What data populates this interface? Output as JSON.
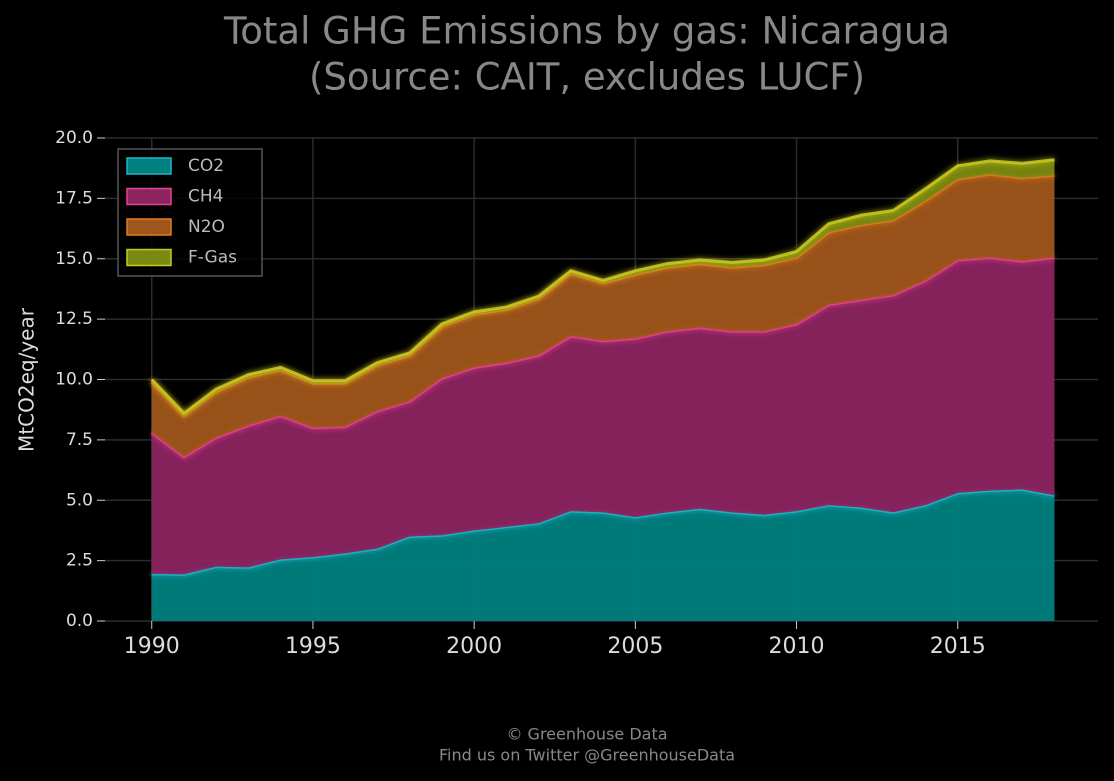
{
  "chart_data": {
    "type": "stacked-area",
    "title": "Total GHG Emissions by gas: Nicaragua",
    "subtitle": "(Source: CAIT, excludes LUCF)",
    "ylabel": "MtCO2eq/year",
    "footer": [
      "© Greenhouse Data",
      "Find us on Twitter @GreenhouseData"
    ],
    "x": [
      1990,
      1991,
      1992,
      1993,
      1994,
      1995,
      1996,
      1997,
      1998,
      1999,
      2000,
      2001,
      2002,
      2003,
      2004,
      2005,
      2006,
      2007,
      2008,
      2009,
      2010,
      2011,
      2012,
      2013,
      2014,
      2015,
      2016,
      2017,
      2018
    ],
    "series": [
      {
        "name": "CO2",
        "color": "#1fb5c4",
        "fill": "#008080",
        "values": [
          1.95,
          1.93,
          2.25,
          2.22,
          2.55,
          2.65,
          2.8,
          3.0,
          3.5,
          3.55,
          3.75,
          3.9,
          4.05,
          4.55,
          4.5,
          4.3,
          4.5,
          4.65,
          4.5,
          4.4,
          4.55,
          4.8,
          4.7,
          4.5,
          4.8,
          5.3,
          5.4,
          5.45,
          5.2
        ]
      },
      {
        "name": "CH4",
        "color": "#e8408f",
        "fill": "#8c2460",
        "values": [
          5.85,
          4.87,
          5.35,
          5.88,
          5.95,
          5.35,
          5.25,
          5.7,
          5.6,
          6.5,
          6.75,
          6.8,
          6.95,
          7.25,
          7.1,
          7.4,
          7.5,
          7.5,
          7.5,
          7.6,
          7.75,
          8.3,
          8.6,
          9.0,
          9.3,
          9.65,
          9.65,
          9.45,
          9.85
        ]
      },
      {
        "name": "N2O",
        "color": "#e07a20",
        "fill": "#a0561a",
        "values": [
          2.1,
          1.7,
          1.9,
          2.0,
          1.9,
          1.85,
          1.8,
          1.9,
          1.9,
          2.15,
          2.2,
          2.2,
          2.35,
          2.6,
          2.4,
          2.65,
          2.65,
          2.65,
          2.65,
          2.75,
          2.75,
          3.0,
          3.1,
          3.1,
          3.3,
          3.35,
          3.45,
          3.45,
          3.4
        ]
      },
      {
        "name": "F-Gas",
        "color": "#c8c820",
        "fill": "#7a8a10",
        "values": [
          0.1,
          0.1,
          0.1,
          0.1,
          0.1,
          0.1,
          0.1,
          0.1,
          0.1,
          0.1,
          0.1,
          0.1,
          0.1,
          0.1,
          0.1,
          0.15,
          0.15,
          0.15,
          0.2,
          0.2,
          0.25,
          0.35,
          0.4,
          0.4,
          0.5,
          0.55,
          0.55,
          0.6,
          0.65
        ]
      }
    ],
    "xlim": [
      1988.55,
      2019.35
    ],
    "xticks": [
      1990,
      1995,
      2000,
      2005,
      2010,
      2015
    ],
    "ylim": [
      0,
      20
    ],
    "yticks": [
      {
        "value": 0,
        "label": "0.0"
      },
      2.5,
      {
        "value": 5,
        "label": "5.0"
      },
      7.5,
      {
        "value": 10,
        "label": "10.0"
      },
      12.5,
      {
        "value": 15,
        "label": "15.0"
      },
      17.5,
      {
        "value": 20,
        "label": "20.0"
      }
    ],
    "grid": true,
    "legend": "upper left"
  }
}
